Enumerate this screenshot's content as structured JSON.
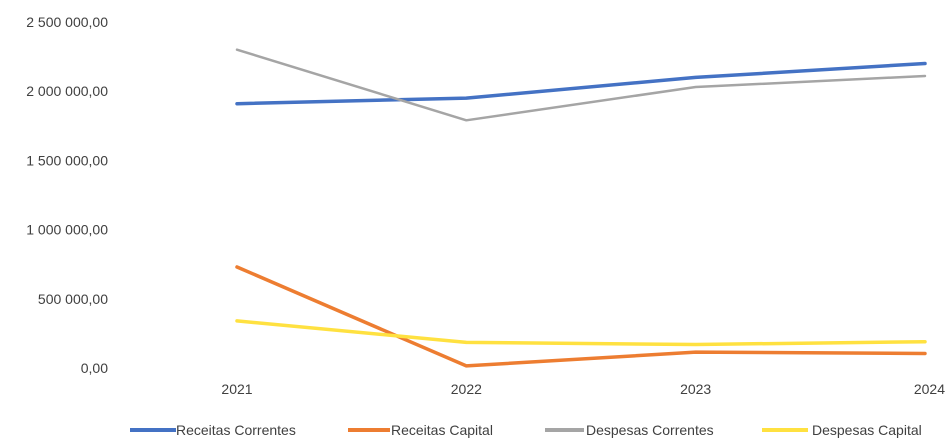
{
  "chart_data": {
    "type": "line",
    "title": "",
    "xlabel": "",
    "ylabel": "",
    "categories": [
      "2021",
      "2022",
      "2023",
      "2024"
    ],
    "ylim": [
      0,
      2500000
    ],
    "yticks": [
      0,
      500000,
      1000000,
      1500000,
      2000000,
      2500000
    ],
    "ytick_labels": [
      "0,00",
      "500 000,00",
      "1 000 000,00",
      "1 500 000,00",
      "2 000 000,00",
      "2 500 000,00"
    ],
    "grid": false,
    "legend_position": "bottom",
    "series": [
      {
        "name": "Receitas Correntes",
        "color": "#4472C4",
        "values": [
          1910000,
          1950000,
          2100000,
          2200000
        ]
      },
      {
        "name": "Receitas Capital",
        "color": "#ED7D31",
        "values": [
          730000,
          15000,
          115000,
          105000
        ]
      },
      {
        "name": "Despesas Correntes",
        "color": "#A5A5A5",
        "values": [
          2300000,
          1790000,
          2030000,
          2110000
        ]
      },
      {
        "name": "Despesas Capital",
        "color": "#FFE140",
        "values": [
          340000,
          185000,
          170000,
          190000
        ]
      }
    ]
  }
}
